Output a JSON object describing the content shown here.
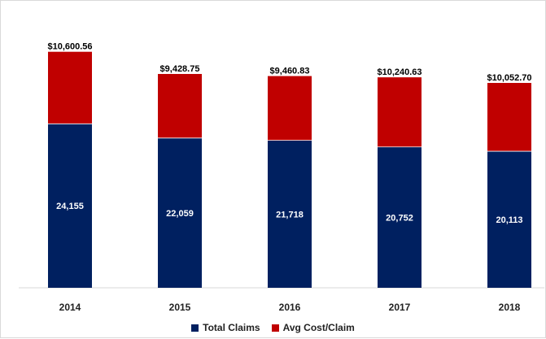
{
  "chart_data": {
    "type": "bar",
    "stacked": true,
    "categories": [
      "2014",
      "2015",
      "2016",
      "2017",
      "2018"
    ],
    "series": [
      {
        "name": "Total Claims",
        "color": "#002060",
        "values": [
          24155,
          22059,
          21718,
          20752,
          20113
        ],
        "labels": [
          "24,155",
          "22,059",
          "21,718",
          "20,752",
          "20,113"
        ]
      },
      {
        "name": "Avg Cost/Claim",
        "color": "#c00000",
        "values": [
          10600.56,
          9428.75,
          9460.83,
          10240.63,
          10052.7
        ],
        "labels": [
          "$10,600.56",
          "$9,428.75",
          "$9,460.83",
          "$10,240.63",
          "$10,052.70"
        ]
      }
    ],
    "legend_position": "bottom",
    "grid": false,
    "title": "",
    "xlabel": "",
    "ylabel": ""
  }
}
